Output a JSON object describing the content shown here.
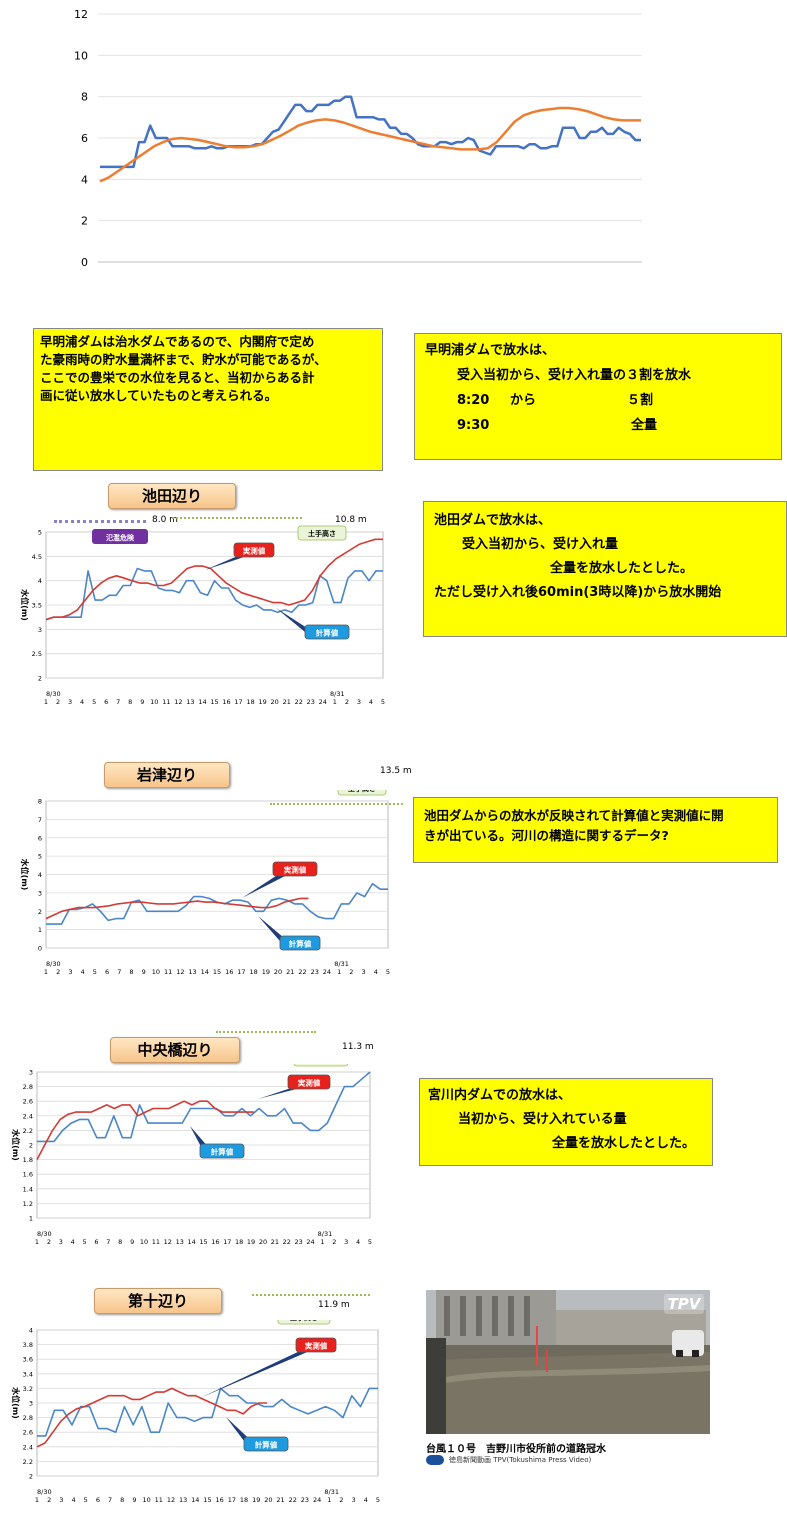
{
  "top_chart": {
    "chart_data": {
      "type": "line",
      "ylim": [
        0,
        12
      ],
      "yticks": [
        "0",
        "2",
        "4",
        "6",
        "8",
        "10",
        "12"
      ],
      "series": [
        {
          "color": "#4472c4",
          "values": [
            4.6,
            4.6,
            4.6,
            4.6,
            4.6,
            4.6,
            4.6,
            5.8,
            5.8,
            6.6,
            6.0,
            6.0,
            6.0,
            5.6,
            5.6,
            5.6,
            5.6,
            5.5,
            5.5,
            5.5,
            5.6,
            5.5,
            5.5,
            5.6,
            5.6,
            5.6,
            5.6,
            5.6,
            5.7,
            5.7,
            6.0,
            6.3,
            6.4,
            6.8,
            7.2,
            7.6,
            7.6,
            7.3,
            7.3,
            7.6,
            7.6,
            7.6,
            7.8,
            7.8,
            8.0,
            8.0,
            7.0,
            7.0,
            7.0,
            7.0,
            6.9,
            6.9,
            6.5,
            6.5,
            6.2,
            6.2,
            6.0,
            5.7,
            5.6,
            5.6,
            5.6,
            5.8,
            5.8,
            5.7,
            5.8,
            5.8,
            6.0,
            5.9,
            5.4,
            5.3,
            5.2,
            5.6,
            5.6,
            5.6,
            5.6,
            5.6,
            5.5,
            5.7,
            5.7,
            5.5,
            5.5,
            5.6,
            5.6,
            6.5,
            6.5,
            6.5,
            6.0,
            6.0,
            6.3,
            6.3,
            6.5,
            6.2,
            6.2,
            6.5,
            6.3,
            6.2,
            5.9,
            5.9
          ]
        },
        {
          "color": "#ed7d31",
          "values": [
            3.9,
            4.1,
            4.4,
            4.7,
            5.0,
            5.3,
            5.6,
            5.8,
            5.95,
            6.0,
            5.95,
            5.9,
            5.8,
            5.7,
            5.6,
            5.55,
            5.55,
            5.6,
            5.7,
            5.9,
            6.1,
            6.35,
            6.6,
            6.75,
            6.85,
            6.9,
            6.85,
            6.75,
            6.6,
            6.45,
            6.3,
            6.2,
            6.1,
            6.0,
            5.9,
            5.8,
            5.7,
            5.6,
            5.55,
            5.5,
            5.45,
            5.45,
            5.45,
            5.5,
            5.8,
            6.3,
            6.8,
            7.1,
            7.25,
            7.35,
            7.4,
            7.45,
            7.45,
            7.4,
            7.3,
            7.15,
            7.0,
            6.9,
            6.85,
            6.85,
            6.85
          ]
        }
      ]
    }
  },
  "boxes": {
    "hayaakiura_note": [
      "早明浦ダムは治水ダムであるので、内閣府で定め",
      "た豪雨時の貯水量満杯まで、貯水が可能であるが、",
      "ここでの豊栄での水位を見ると、当初からある計",
      "画に従い放水していたものと考えられる。"
    ],
    "hayaakiura_release": {
      "title": "早明浦ダムで放水は、",
      "l1": "受入当初から、受け入れ量の３割を放水",
      "t1": "8:20",
      "w1": "から",
      "v1": "５割",
      "t2": "9:30",
      "v2": "全量"
    },
    "ikeda_release": [
      "池田ダムで放水は、",
      "受入当初から、受け入れ量",
      "全量を放水したとした。",
      "ただし受け入れ後60min(3時以降)から放水開始"
    ],
    "iwazu_note": [
      "池田ダムからの放水が反映されて計算値と実測値に開",
      "きが出ている。河川の構造に関するデータ?"
    ],
    "miyakawa_release": [
      "宮川内ダムでの放水は、",
      "当初から、受け入れている量",
      "全量を放水したとした。"
    ]
  },
  "labels": {
    "measured": "実測値",
    "calculated": "計算値",
    "levee": "土手高さ",
    "flood_danger": "氾濫危険",
    "ylabel": "水位(m)",
    "date_start": "8/30",
    "date_end": "8/31",
    "hours": [
      "1",
      "2",
      "3",
      "4",
      "5",
      "6",
      "7",
      "8",
      "9",
      "10",
      "11",
      "12",
      "13",
      "14",
      "15",
      "16",
      "17",
      "18",
      "19",
      "20",
      "21",
      "22",
      "23",
      "24",
      "1",
      "2",
      "3",
      "4",
      "5"
    ]
  },
  "ikeda": {
    "title": "池田辺り",
    "levee_value": "10.8 m",
    "danger_value": "8.0 m",
    "chart_data": {
      "type": "line",
      "ylim": [
        2,
        5
      ],
      "yticks": [
        "2",
        "2.5",
        "3",
        "3.5",
        "4",
        "4.5",
        "5"
      ],
      "series": [
        {
          "name": "計算値",
          "color": "#4a86c8",
          "values": [
            3.2,
            3.25,
            3.25,
            3.25,
            3.25,
            3.25,
            4.2,
            3.6,
            3.6,
            3.7,
            3.7,
            3.9,
            3.9,
            4.25,
            4.2,
            4.2,
            3.85,
            3.8,
            3.8,
            3.75,
            4.0,
            4.0,
            3.75,
            3.7,
            4.0,
            3.85,
            3.85,
            3.6,
            3.5,
            3.45,
            3.5,
            3.4,
            3.4,
            3.35,
            3.4,
            3.35,
            3.5,
            3.5,
            3.55,
            4.1,
            4.0,
            3.55,
            3.55,
            4.05,
            4.2,
            4.2,
            4.0,
            4.2,
            4.2
          ]
        },
        {
          "name": "実測値",
          "color": "#d23b35",
          "values": [
            3.2,
            3.25,
            3.25,
            3.3,
            3.4,
            3.6,
            3.8,
            3.95,
            4.05,
            4.1,
            4.05,
            4.0,
            3.95,
            3.95,
            3.9,
            3.9,
            3.95,
            4.1,
            4.25,
            4.3,
            4.3,
            4.25,
            4.1,
            3.95,
            3.85,
            3.75,
            3.7,
            3.65,
            3.6,
            3.55,
            3.55,
            3.5,
            3.55,
            3.6,
            3.8,
            4.1,
            4.3,
            4.45,
            4.55,
            4.65,
            4.75,
            4.8,
            4.85,
            4.85
          ]
        }
      ]
    }
  },
  "iwazu": {
    "title": "岩津辺り",
    "levee_value": "13.5 m",
    "chart_data": {
      "type": "line",
      "ylim": [
        0,
        8
      ],
      "yticks": [
        "0",
        "1",
        "2",
        "3",
        "4",
        "5",
        "6",
        "7",
        "8"
      ],
      "series": [
        {
          "name": "計算値",
          "color": "#4a86c8",
          "values": [
            1.3,
            1.3,
            1.3,
            2.1,
            2.1,
            2.2,
            2.4,
            2.0,
            1.5,
            1.6,
            1.6,
            2.5,
            2.6,
            2.0,
            2.0,
            2.0,
            2.0,
            2.0,
            2.3,
            2.8,
            2.8,
            2.7,
            2.5,
            2.4,
            2.6,
            2.6,
            2.5,
            2.0,
            2.0,
            2.6,
            2.7,
            2.6,
            2.4,
            2.4,
            2.0,
            1.7,
            1.6,
            1.6,
            2.4,
            2.4,
            3.0,
            2.8,
            3.5,
            3.2,
            3.2
          ]
        },
        {
          "name": "実測値",
          "color": "#d23b35",
          "values": [
            1.6,
            1.8,
            2.0,
            2.1,
            2.2,
            2.2,
            2.2,
            2.25,
            2.3,
            2.4,
            2.45,
            2.5,
            2.5,
            2.45,
            2.4,
            2.4,
            2.4,
            2.45,
            2.5,
            2.55,
            2.5,
            2.5,
            2.45,
            2.4,
            2.35,
            2.3,
            2.25,
            2.2,
            2.2,
            2.3,
            2.5,
            2.6,
            2.7,
            2.7
          ]
        }
      ]
    }
  },
  "chuo": {
    "title": "中央橋辺り",
    "levee_value": "11.3 m",
    "chart_data": {
      "type": "line",
      "ylim": [
        1,
        3
      ],
      "yticks": [
        "1",
        "1.2",
        "1.4",
        "1.6",
        "1.8",
        "2",
        "2.2",
        "2.4",
        "2.6",
        "2.8",
        "3"
      ],
      "series": [
        {
          "name": "計算値",
          "color": "#4a86c8",
          "values": [
            2.05,
            2.05,
            2.05,
            2.2,
            2.3,
            2.35,
            2.35,
            2.1,
            2.1,
            2.4,
            2.1,
            2.1,
            2.55,
            2.3,
            2.3,
            2.3,
            2.3,
            2.3,
            2.5,
            2.5,
            2.5,
            2.5,
            2.4,
            2.4,
            2.5,
            2.4,
            2.5,
            2.4,
            2.4,
            2.5,
            2.3,
            2.3,
            2.2,
            2.2,
            2.3,
            2.55,
            2.8,
            2.8,
            2.9,
            3.0
          ]
        },
        {
          "name": "実測値",
          "color": "#d23b35",
          "values": [
            1.8,
            2.0,
            2.2,
            2.35,
            2.42,
            2.45,
            2.45,
            2.45,
            2.5,
            2.55,
            2.5,
            2.55,
            2.55,
            2.4,
            2.45,
            2.5,
            2.5,
            2.5,
            2.55,
            2.6,
            2.55,
            2.6,
            2.6,
            2.5,
            2.45,
            2.45,
            2.45,
            2.45,
            2.45
          ]
        }
      ]
    }
  },
  "daijyu": {
    "title": "第十辺り",
    "levee_value": "11.9 m",
    "chart_data": {
      "type": "line",
      "ylim": [
        2,
        4
      ],
      "yticks": [
        "2",
        "2.2",
        "2.4",
        "2.6",
        "2.8",
        "3",
        "3.2",
        "3.4",
        "3.6",
        "3.8",
        "4"
      ],
      "series": [
        {
          "name": "計算値",
          "color": "#4a86c8",
          "values": [
            2.55,
            2.55,
            2.9,
            2.9,
            2.7,
            2.95,
            2.95,
            2.65,
            2.65,
            2.6,
            2.95,
            2.7,
            2.95,
            2.6,
            2.6,
            3.0,
            2.8,
            2.8,
            2.75,
            2.8,
            2.8,
            3.2,
            3.1,
            3.1,
            3.0,
            3.0,
            2.95,
            2.95,
            3.05,
            2.95,
            2.9,
            2.85,
            2.9,
            2.95,
            2.9,
            2.8,
            3.1,
            2.95,
            3.2,
            3.2
          ]
        },
        {
          "name": "実測値",
          "color": "#d23b35",
          "values": [
            2.4,
            2.45,
            2.6,
            2.75,
            2.85,
            2.92,
            2.95,
            3.0,
            3.05,
            3.1,
            3.1,
            3.1,
            3.05,
            3.05,
            3.1,
            3.15,
            3.15,
            3.2,
            3.15,
            3.1,
            3.1,
            3.05,
            3.0,
            2.95,
            2.9,
            2.9,
            2.85,
            2.95,
            3.0,
            3.0
          ]
        }
      ]
    }
  },
  "photo": {
    "logo": "TPV",
    "caption": "台風１０号　吉野川市役所前の道路冠水",
    "credit": "徳島新聞動画 TPV(Tokushima Press Video)"
  }
}
